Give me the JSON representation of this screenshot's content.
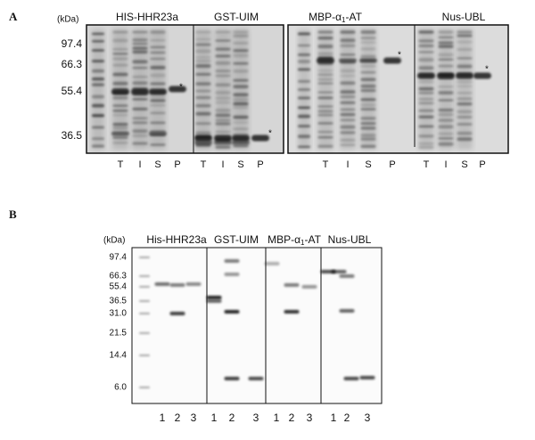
{
  "panel_a": {
    "label": "A",
    "unit": "(kDa)",
    "markers": [
      "97.4",
      "66.3",
      "55.4",
      "36.5"
    ],
    "titles": [
      {
        "text": "HIS-HHR23a"
      },
      {
        "text": "GST-UIM"
      },
      {
        "pre": "MBP-α",
        "sub": "1",
        "post": "-AT"
      },
      {
        "text": "Nus-UBL"
      }
    ],
    "lanes": [
      "T",
      "I",
      "S",
      "P",
      "T",
      "I",
      "S",
      "P",
      "T",
      "I",
      "S",
      "P",
      "T",
      "I",
      "S",
      "P"
    ],
    "asterisks": [
      "*",
      "*",
      "*",
      "*"
    ]
  },
  "panel_b": {
    "label": "B",
    "unit": "(kDa)",
    "markers": [
      "97.4",
      "66.3",
      "55.4",
      "36.5",
      "31.0",
      "21.5",
      "14.4",
      "6.0"
    ],
    "titles": [
      {
        "text": "His-HHR23a"
      },
      {
        "text": "GST-UIM"
      },
      {
        "pre": "MBP-α",
        "sub": "1",
        "post": "-AT"
      },
      {
        "text": "Nus-UBL"
      }
    ],
    "lanes": [
      "1",
      "2",
      "3",
      "1",
      "2",
      "3",
      "1",
      "2",
      "3",
      "1",
      "2",
      "3"
    ]
  }
}
